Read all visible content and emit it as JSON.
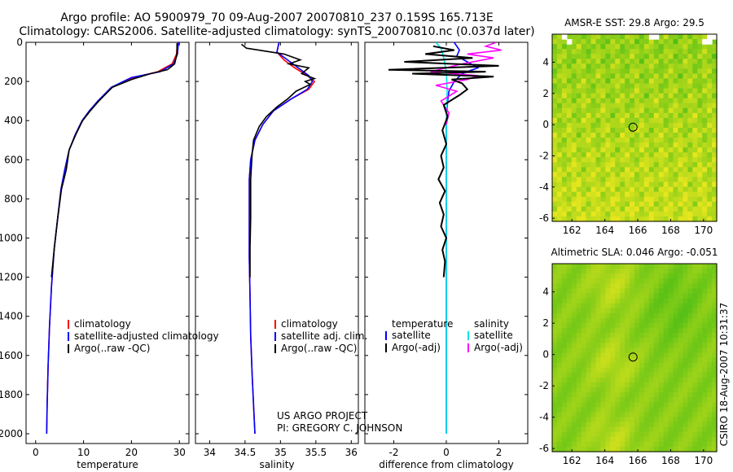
{
  "header": {
    "title_line1": "Argo profile: AO 5900979_70 09-Aug-2007 20070810_237 0.159S 165.713E",
    "title_line2": "Climatology: CARS2006. Satellite-adjusted climatology: synTS_20070810.nc (0.037d later)"
  },
  "side_stamp": "CSIRO 18-Aug-2007 10:31:37",
  "project_credit": [
    "US ARGO PROJECT",
    "PI: GREGORY C. JOHNSON"
  ],
  "colors": {
    "climatology": "#ff0000",
    "satellite": "#0000ff",
    "argo": "#000000",
    "satellite_salinity": "#00e5e5",
    "argo_salinity": "#ff00ff"
  },
  "chart_data": [
    {
      "id": "temperature",
      "type": "line",
      "xlabel": "temperature",
      "ylabel": "",
      "xlim": [
        -2,
        32
      ],
      "ylim": [
        2050,
        0
      ],
      "xticks": [
        0,
        10,
        20,
        30
      ],
      "yticks": [
        0,
        200,
        400,
        600,
        800,
        1000,
        1200,
        1400,
        1600,
        1800,
        2000
      ],
      "legend": [
        "climatology",
        "satellite-adjusted climatology",
        "Argo(..raw -QC)"
      ],
      "series": [
        {
          "name": "climatology",
          "color": "#ff0000",
          "x": [
            29.6,
            29.4,
            28.5,
            25.5,
            20.5,
            16.0,
            13.0,
            11.3,
            9.8,
            8.3,
            7.0,
            6.1,
            5.3,
            4.6,
            3.9,
            3.3,
            2.9,
            2.6,
            2.4,
            2.3
          ],
          "y": [
            0,
            60,
            110,
            150,
            180,
            230,
            300,
            350,
            400,
            470,
            550,
            650,
            750,
            900,
            1050,
            1250,
            1450,
            1650,
            1850,
            2000
          ]
        },
        {
          "name": "satellite-adjusted climatology",
          "color": "#0000ff",
          "x": [
            29.8,
            29.6,
            28.8,
            26.0,
            20.0,
            15.8,
            13.0,
            11.2,
            9.7,
            8.3,
            7.0,
            6.1,
            5.3,
            4.6,
            3.9,
            3.3,
            2.9,
            2.6,
            2.4,
            2.3
          ],
          "y": [
            0,
            60,
            110,
            150,
            180,
            230,
            300,
            350,
            400,
            470,
            550,
            650,
            750,
            900,
            1050,
            1250,
            1450,
            1650,
            1850,
            2000
          ]
        },
        {
          "name": "Argo(..raw -QC)",
          "color": "#000000",
          "x": [
            29.5,
            29.5,
            29.0,
            27.5,
            24.0,
            20.0,
            16.0,
            13.2,
            11.4,
            9.8,
            8.4,
            7.0,
            6.4,
            5.9,
            5.4,
            4.6,
            3.9,
            3.3
          ],
          "y": [
            5,
            60,
            110,
            140,
            160,
            190,
            230,
            300,
            350,
            400,
            470,
            550,
            650,
            700,
            750,
            900,
            1050,
            1200
          ]
        }
      ]
    },
    {
      "id": "salinity",
      "type": "line",
      "xlabel": "salinity",
      "ylabel": "",
      "xlim": [
        33.8,
        36.1
      ],
      "ylim": [
        2050,
        0
      ],
      "xticks": [
        34,
        34.5,
        35,
        35.5,
        36
      ],
      "yticks": [
        0,
        200,
        400,
        600,
        800,
        1000,
        1200,
        1400,
        1600,
        1800,
        2000
      ],
      "legend": [
        "climatology",
        "satellite adj. clim.",
        "Argo(..raw -QC)"
      ],
      "series": [
        {
          "name": "climatology",
          "color": "#ff0000",
          "x": [
            34.98,
            34.95,
            35.05,
            35.2,
            35.38,
            35.48,
            35.4,
            35.15,
            34.9,
            34.75,
            34.64,
            34.58,
            34.56,
            34.56,
            34.56,
            34.57,
            34.58,
            34.6,
            34.62,
            34.64
          ],
          "y": [
            0,
            50,
            90,
            130,
            170,
            200,
            240,
            290,
            350,
            420,
            500,
            600,
            700,
            900,
            1100,
            1300,
            1500,
            1700,
            1850,
            2000
          ]
        },
        {
          "name": "satellite adj. clim.",
          "color": "#0000ff",
          "x": [
            34.98,
            34.95,
            35.1,
            35.25,
            35.4,
            35.45,
            35.38,
            35.15,
            34.9,
            34.75,
            34.64,
            34.58,
            34.56,
            34.56,
            34.56,
            34.57,
            34.58,
            34.6,
            34.62,
            34.64
          ],
          "y": [
            0,
            50,
            90,
            130,
            170,
            200,
            240,
            290,
            350,
            420,
            500,
            600,
            700,
            900,
            1100,
            1300,
            1500,
            1700,
            1850,
            2000
          ]
        },
        {
          "name": "Argo(..raw -QC)",
          "color": "#000000",
          "x": [
            34.45,
            34.52,
            35.05,
            35.28,
            35.12,
            35.4,
            35.3,
            35.48,
            35.35,
            35.42,
            35.22,
            35.1,
            34.95,
            34.8,
            34.7,
            34.62,
            34.6,
            34.58,
            34.58,
            34.57,
            34.57
          ],
          "y": [
            10,
            30,
            60,
            90,
            110,
            130,
            160,
            185,
            200,
            215,
            250,
            290,
            330,
            380,
            430,
            500,
            570,
            700,
            900,
            1050,
            1200
          ]
        }
      ]
    },
    {
      "id": "difference",
      "type": "line",
      "xlabel": "difference from climatology",
      "ylabel": "",
      "xlim": [
        -3.1,
        3.1
      ],
      "ylim": [
        2050,
        0
      ],
      "xticks": [
        -2,
        0,
        2
      ],
      "yticks": [
        0,
        200,
        400,
        600,
        800,
        1000,
        1200,
        1400,
        1600,
        1800,
        2000
      ],
      "legend_temperature": [
        "temperature",
        "satellite",
        "Argo(-adj)"
      ],
      "legend_salinity": [
        "salinity",
        "satellite",
        "Argo(-adj)"
      ],
      "series": [
        {
          "name": "temperature satellite",
          "color": "#0000ff",
          "x": [
            0.3,
            0.5,
            0.4,
            0.8,
            1.2,
            0.6,
            0.3,
            0.1,
            0.05,
            0,
            0,
            0,
            0,
            0,
            0
          ],
          "y": [
            0,
            40,
            70,
            100,
            130,
            160,
            200,
            250,
            300,
            400,
            600,
            900,
            1300,
            1700,
            2000
          ]
        },
        {
          "name": "salinity satellite",
          "color": "#00e5e5",
          "x": [
            -0.4,
            -0.2,
            -0.1,
            0,
            0.03,
            0.02,
            0,
            0,
            0,
            0,
            0,
            0
          ],
          "y": [
            0,
            30,
            80,
            150,
            250,
            350,
            500,
            800,
            1100,
            1400,
            1700,
            2000
          ]
        },
        {
          "name": "salinity Argo(-adj)",
          "color": "#ff00ff",
          "x": [
            1.9,
            1.5,
            2.1,
            0.8,
            1.8,
            0.6,
            -0.6,
            1.2,
            0.8,
            -0.4,
            0.4,
            -0.2,
            0.1,
            0.0
          ],
          "y": [
            0,
            20,
            40,
            60,
            80,
            110,
            150,
            170,
            190,
            220,
            250,
            300,
            360,
            420
          ]
        },
        {
          "name": "temperature Argo(-adj)",
          "color": "#000000",
          "x": [
            -0.5,
            0.3,
            -0.8,
            1.0,
            -1.6,
            2.0,
            -2.2,
            1.5,
            -1.3,
            1.8,
            0.2,
            0.6,
            0.8,
            0.5,
            -0.1,
            0.05,
            -0.15,
            0.0,
            -0.2,
            -0.1,
            -0.3,
            -0.05,
            -0.25,
            -0.1,
            -0.2,
            0.0,
            -0.15,
            -0.05,
            -0.1
          ],
          "y": [
            20,
            40,
            60,
            80,
            100,
            120,
            140,
            150,
            160,
            175,
            190,
            210,
            240,
            270,
            320,
            380,
            450,
            520,
            580,
            640,
            700,
            760,
            820,
            880,
            940,
            1000,
            1060,
            1120,
            1200
          ]
        }
      ]
    },
    {
      "id": "amsre-sst-map",
      "type": "heatmap",
      "title": "AMSR-E SST: 29.8  Argo: 29.5",
      "xlim": [
        160.8,
        170.8
      ],
      "ylim": [
        -6.2,
        5.8
      ],
      "xticks": [
        162,
        164,
        166,
        168,
        170
      ],
      "yticks": [
        -6,
        -4,
        -2,
        0,
        2,
        4
      ],
      "marker": {
        "lon": 165.713,
        "lat": -0.159
      }
    },
    {
      "id": "altimetric-sla-map",
      "type": "heatmap",
      "title": "Altimetric SLA: 0.046  Argo: -0.051",
      "xlim": [
        160.8,
        170.8
      ],
      "ylim": [
        -6.2,
        5.8
      ],
      "xticks": [
        162,
        164,
        166,
        168,
        170
      ],
      "yticks": [
        -6,
        -4,
        -2,
        0,
        2,
        4
      ],
      "marker": {
        "lon": 165.713,
        "lat": -0.159
      }
    }
  ]
}
